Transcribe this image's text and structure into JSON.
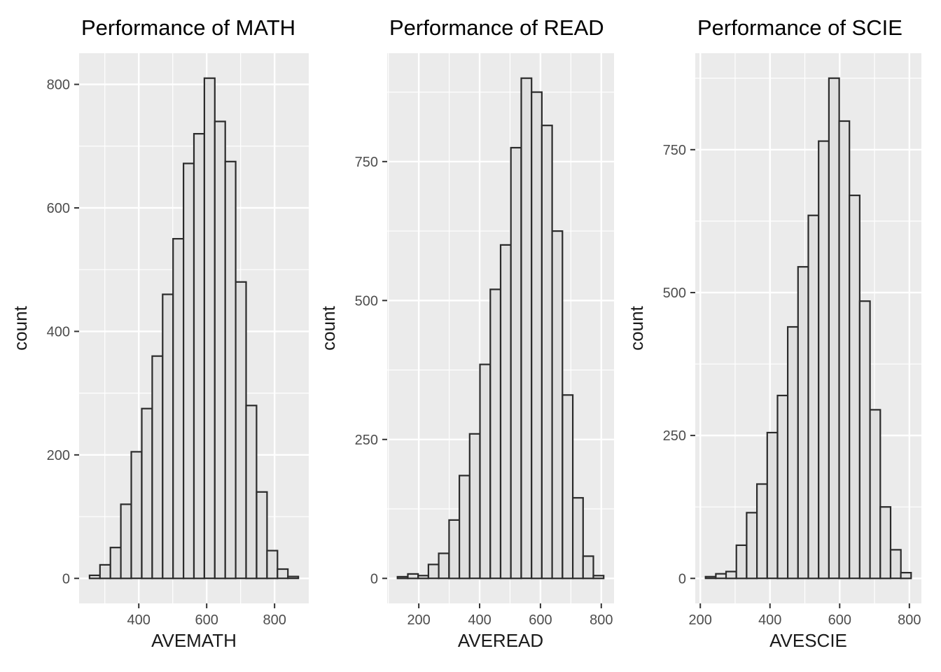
{
  "figure": {
    "description": "Three histograms of school performance scores",
    "background": "#ffffff"
  },
  "colors": {
    "panel_bg": "#ebebeb",
    "grid_major": "#ffffff",
    "grid_minor": "#ffffff",
    "bar_fill": "#e0e0e0",
    "bar_stroke": "#2b2b2b",
    "tick_mark": "#333333",
    "tick_label": "#4d4d4d",
    "axis_title": "#1a1a1a",
    "plot_title": "#000000"
  },
  "chart_data": [
    {
      "type": "histogram",
      "title": "Performance of MATH",
      "xlabel": "AVEMATH",
      "ylabel": "count",
      "xlim": [
        224.25,
        900.75
      ],
      "ylim": [
        -40.5,
        850.5
      ],
      "x_ticks": [
        400,
        600,
        800
      ],
      "x_minor_ticks": [
        300,
        500,
        700
      ],
      "y_ticks": [
        0,
        200,
        400,
        600,
        800
      ],
      "y_minor_ticks": [
        100,
        300,
        500,
        700
      ],
      "bin_start": 255,
      "bin_width": 30.75,
      "counts": [
        5,
        22,
        50,
        120,
        205,
        275,
        360,
        460,
        550,
        672,
        720,
        810,
        740,
        675,
        480,
        280,
        140,
        45,
        15,
        3
      ]
    },
    {
      "type": "histogram",
      "title": "Performance of READ",
      "xlabel": "AVEREAD",
      "ylabel": "count",
      "xlim": [
        96.1,
        841.9
      ],
      "ylim": [
        -45.0,
        945.0
      ],
      "x_ticks": [
        200,
        400,
        600,
        800
      ],
      "x_minor_ticks": [
        100,
        300,
        500,
        700
      ],
      "y_ticks": [
        0,
        250,
        500,
        750
      ],
      "y_minor_ticks": [
        125,
        375,
        625,
        875
      ],
      "bin_start": 130,
      "bin_width": 33.9,
      "counts": [
        3,
        8,
        5,
        25,
        45,
        105,
        185,
        260,
        385,
        520,
        600,
        775,
        900,
        875,
        815,
        625,
        330,
        145,
        40,
        5
      ]
    },
    {
      "type": "histogram",
      "title": "Performance of SCIE",
      "xlabel": "AVESCIE",
      "ylabel": "count",
      "xlim": [
        185.5,
        834.5
      ],
      "ylim": [
        -43.75,
        918.75
      ],
      "x_ticks": [
        200,
        400,
        600,
        800
      ],
      "x_minor_ticks": [
        300,
        500,
        700
      ],
      "y_ticks": [
        0,
        250,
        500,
        750
      ],
      "y_minor_ticks": [
        125,
        375,
        625,
        875
      ],
      "bin_start": 215,
      "bin_width": 29.5,
      "counts": [
        3,
        8,
        12,
        58,
        115,
        165,
        255,
        320,
        440,
        545,
        635,
        765,
        875,
        800,
        670,
        485,
        295,
        125,
        50,
        10
      ]
    }
  ]
}
